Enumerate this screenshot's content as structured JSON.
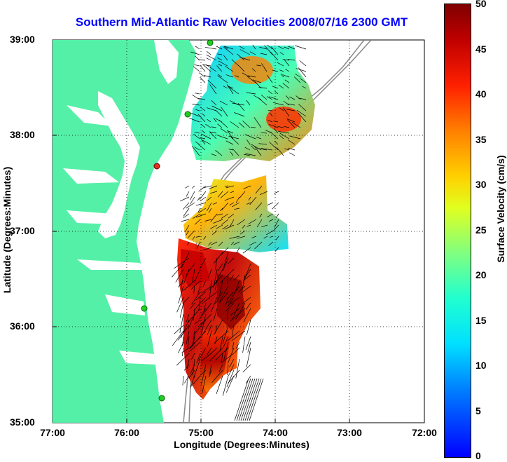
{
  "title": "Southern Mid-Atlantic Raw Velocities 2008/07/16 2300 GMT",
  "x_axis": {
    "label": "Longitude (Degrees:Minutes)",
    "ticks": [
      "77:00",
      "76:00",
      "75:00",
      "74:00",
      "73:00",
      "72:00"
    ]
  },
  "y_axis": {
    "label": "Latitude (Degrees:Minutes)",
    "ticks": [
      "39:00",
      "38:00",
      "37:00",
      "36:00",
      "35:00"
    ]
  },
  "colorbar": {
    "label": "Surface Velocity (cm/s)",
    "ticks": [
      "50",
      "45",
      "40",
      "35",
      "30",
      "25",
      "20",
      "15",
      "10",
      "5",
      "0"
    ],
    "range": [
      0,
      50
    ],
    "colors": [
      "#0000ff",
      "#00e0ff",
      "#80ff80",
      "#ffd000",
      "#ff2000",
      "#800000"
    ]
  },
  "colors": {
    "land": "#55f0a8",
    "site_marker": "#22cc22",
    "site_marker_inactive": "#e03020",
    "bathymetry": "#888888",
    "grid": "#000000"
  }
}
